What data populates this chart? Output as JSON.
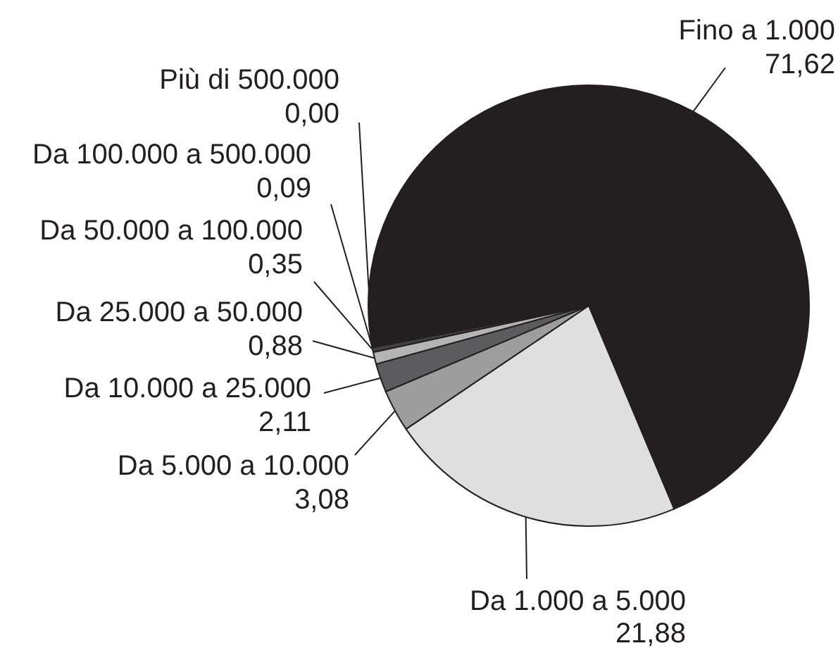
{
  "chart_data": {
    "type": "pie",
    "categories": [
      "Fino a 1.000",
      "Da 1.000 a 5.000",
      "Da 5.000 a 10.000",
      "Da 10.000 a 25.000",
      "Da 25.000 a 50.000",
      "Da 50.000 a 100.000",
      "Da 100.000 a 500.000",
      "Più di 500.000"
    ],
    "values": [
      71.62,
      21.88,
      3.08,
      2.11,
      0.88,
      0.35,
      0.09,
      0.0
    ],
    "colors": [
      "#231f20",
      "#dfdfe0",
      "#9d9d9e",
      "#5c5c5e",
      "#b4b4b5",
      "#404042",
      "#7e7e80",
      "#231f20"
    ],
    "value_labels": [
      "71,62",
      "21,88",
      "3,08",
      "2,11",
      "0,88",
      "0,35",
      "0,09",
      "0,00"
    ]
  }
}
